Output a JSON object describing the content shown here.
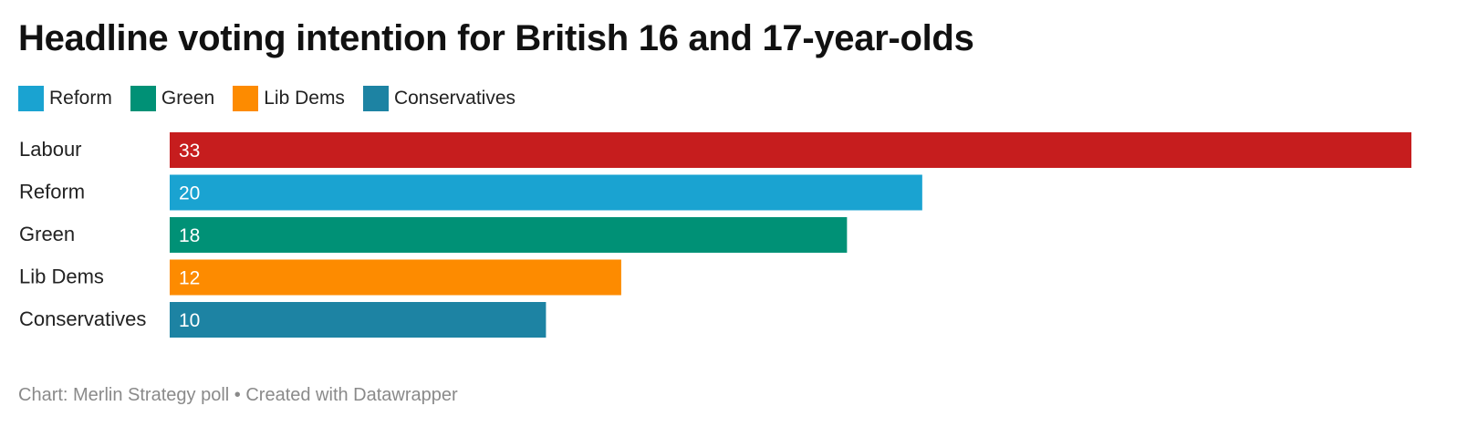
{
  "title": "Headline voting intention for British 16 and 17-year-olds",
  "legend": [
    {
      "label": "Reform",
      "color": "#1aa3d1"
    },
    {
      "label": "Green",
      "color": "#009176"
    },
    {
      "label": "Lib Dems",
      "color": "#fd8b00"
    },
    {
      "label": "Conservatives",
      "color": "#1d83a3"
    }
  ],
  "chart_data": {
    "type": "bar",
    "orientation": "horizontal",
    "categories": [
      "Labour",
      "Reform",
      "Green",
      "Lib Dems",
      "Conservatives"
    ],
    "values": [
      33,
      20,
      18,
      12,
      10
    ],
    "colors": [
      "#c61d1e",
      "#1aa3d1",
      "#009176",
      "#fd8b00",
      "#1d83a3"
    ],
    "xlim": [
      0,
      33
    ],
    "grid": false,
    "legend_placement": "top-left",
    "title": "Headline voting intention for British 16 and 17-year-olds"
  },
  "footer": {
    "source": "Chart: Merlin Strategy poll",
    "separator": "•",
    "credit": "Created with Datawrapper"
  }
}
